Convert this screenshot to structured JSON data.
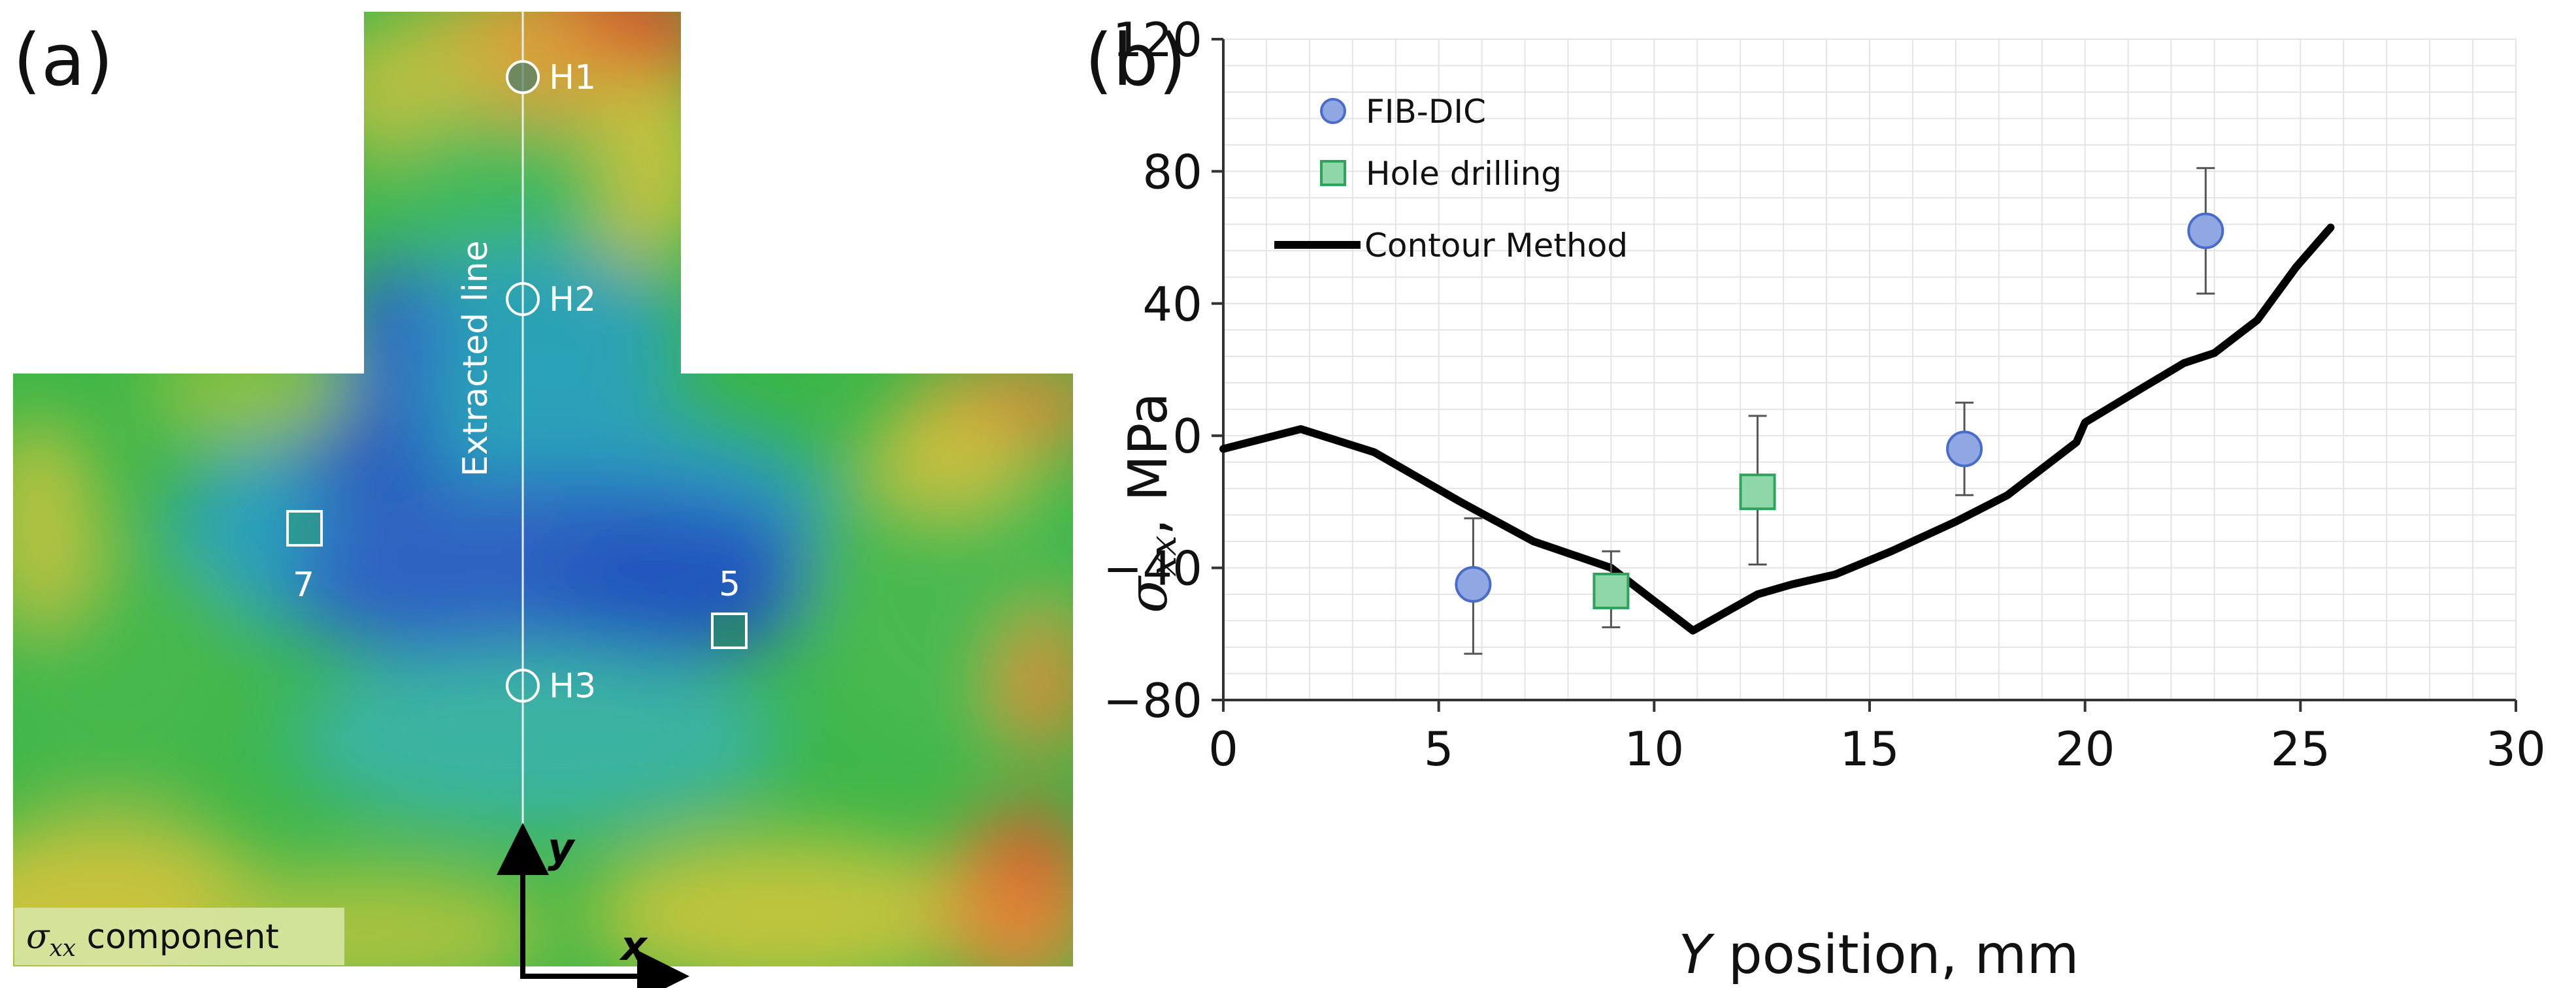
{
  "panel_a": {
    "tag": "(a)",
    "extracted_line_label": "Extracted line",
    "hole_labels": [
      "H1",
      "H2",
      "H3"
    ],
    "square_labels": [
      "7",
      "5"
    ],
    "component_label_sigma": "σ",
    "component_label_sub": "xx",
    "component_label_rest": " component",
    "axis_y_label": "y",
    "axis_x_label": "x"
  },
  "panel_b": {
    "tag": "(b)"
  },
  "chart_data": {
    "type": "scatter",
    "xlabel_italic": "Y",
    "xlabel_rest": " position, mm",
    "ylabel_sigma": "σ",
    "ylabel_sub": "xx",
    "ylabel_rest": ", MPa",
    "xlim": [
      0,
      30
    ],
    "ylim": [
      -80,
      120
    ],
    "x_ticks": [
      0,
      5,
      10,
      15,
      20,
      25,
      30
    ],
    "y_ticks": [
      -80,
      -40,
      0,
      40,
      80,
      120
    ],
    "y_tick_labels": [
      "−80",
      "−40",
      "0",
      "40",
      "80",
      "120"
    ],
    "grid": true,
    "legend_position": "top-left",
    "series": [
      {
        "name": "FIB-DIC",
        "kind": "marker",
        "marker": "circle",
        "color": "#8fa8e3",
        "stroke": "#4a6cc9",
        "points": [
          {
            "x": 5.8,
            "y": -45,
            "err_low": -66,
            "err_high": -25
          },
          {
            "x": 17.2,
            "y": -4,
            "err_low": -18,
            "err_high": 10
          },
          {
            "x": 22.8,
            "y": 62,
            "err_low": 43,
            "err_high": 81
          }
        ]
      },
      {
        "name": "Hole drilling",
        "kind": "marker",
        "marker": "square",
        "color": "#8fd6a8",
        "stroke": "#2ea35c",
        "points": [
          {
            "x": 9.0,
            "y": -47,
            "err_low": -58,
            "err_high": -35
          },
          {
            "x": 12.4,
            "y": -17,
            "err_low": -39,
            "err_high": 6
          }
        ]
      },
      {
        "name": "Contour Method",
        "kind": "line",
        "color": "#000000",
        "points": [
          [
            0,
            -4
          ],
          [
            1.8,
            2
          ],
          [
            3.5,
            -5
          ],
          [
            5.5,
            -20
          ],
          [
            7.2,
            -32
          ],
          [
            9,
            -40
          ],
          [
            10,
            -50
          ],
          [
            10.9,
            -59
          ],
          [
            12.4,
            -48
          ],
          [
            13.2,
            -45
          ],
          [
            14.2,
            -42
          ],
          [
            15.5,
            -35
          ],
          [
            17,
            -26
          ],
          [
            18.2,
            -18
          ],
          [
            19.8,
            -2
          ],
          [
            20,
            4
          ],
          [
            21.4,
            15
          ],
          [
            22.3,
            22
          ],
          [
            23,
            25
          ],
          [
            24,
            35
          ],
          [
            24.9,
            51
          ],
          [
            25.7,
            63
          ]
        ]
      }
    ]
  },
  "colors": {
    "map_blue": "#2f66c4",
    "map_cyan": "#23a9b9",
    "map_green": "#2fb64a",
    "map_yellow": "#c8c43a",
    "map_orange": "#e08a3a",
    "map_red": "#d2502e",
    "grid": "#e4e4e4",
    "axis": "#333333"
  }
}
